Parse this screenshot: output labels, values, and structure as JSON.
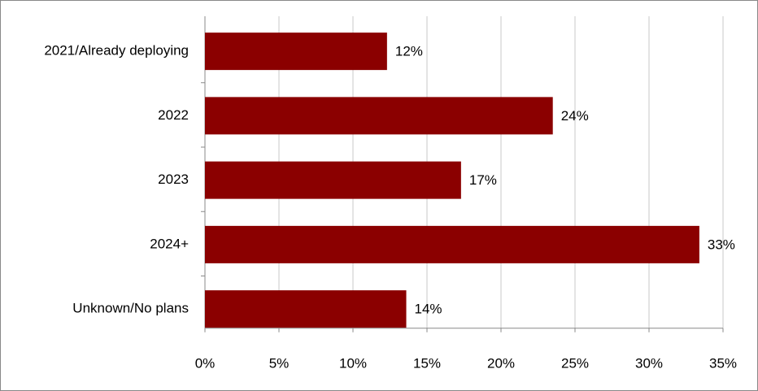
{
  "chart_data": {
    "type": "bar",
    "orientation": "horizontal",
    "categories": [
      "2021/Already deploying",
      "2022",
      "2023",
      "2024+",
      "Unknown/No plans"
    ],
    "values": [
      12.3,
      23.5,
      17.3,
      33.4,
      13.6
    ],
    "value_labels": [
      "12%",
      "24%",
      "17%",
      "33%",
      "14%"
    ],
    "color": "#8b0000",
    "xlim": [
      0,
      35
    ],
    "xticks": [
      {
        "value": 0,
        "label": "0%"
      },
      {
        "value": 5,
        "label": "5%"
      },
      {
        "value": 10,
        "label": "10%"
      },
      {
        "value": 15,
        "label": "15%"
      },
      {
        "value": 20,
        "label": "20%"
      },
      {
        "value": 25,
        "label": "25%"
      },
      {
        "value": 30,
        "label": "30%"
      },
      {
        "value": 35,
        "label": "35%"
      }
    ],
    "grid": true
  }
}
